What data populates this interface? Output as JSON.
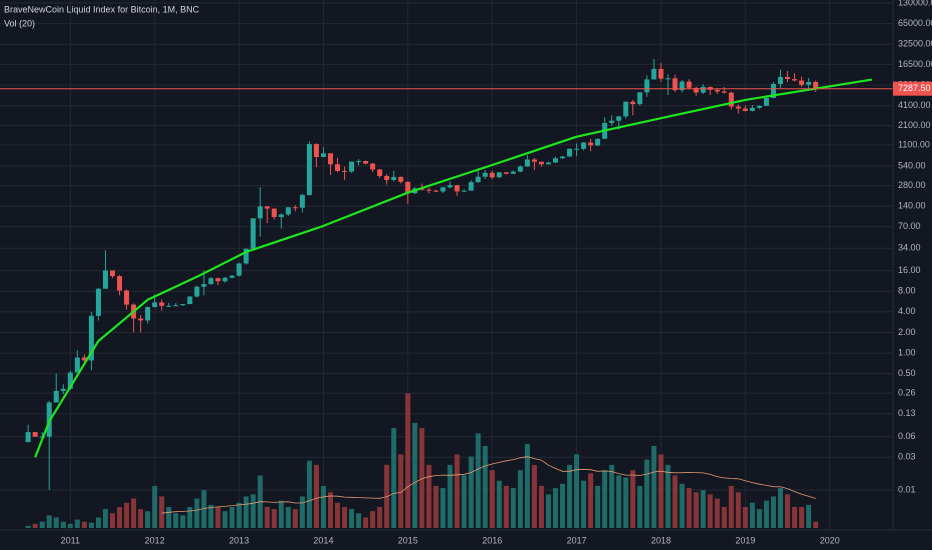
{
  "chart_data": {
    "type": "candlestick",
    "title": "BraveNewCoin Liquid Index for Bitcoin, 1M, BNC",
    "volume_label": "Vol (20)",
    "volume_ma_period": 20,
    "log_scale": true,
    "grid": true,
    "background": "#131722",
    "grid_color": "#242833",
    "up_color": "#26a69a",
    "down_color": "#ef5350",
    "volume_up_color": "#1f6b68",
    "volume_down_color": "#883539",
    "volume_ma_color": "#e39a73",
    "x": [
      "2010-07",
      "2010-08",
      "2010-09",
      "2010-10",
      "2010-11",
      "2010-12",
      "2011-01",
      "2011-02",
      "2011-03",
      "2011-04",
      "2011-05",
      "2011-06",
      "2011-07",
      "2011-08",
      "2011-09",
      "2011-10",
      "2011-11",
      "2011-12",
      "2012-01",
      "2012-02",
      "2012-03",
      "2012-04",
      "2012-05",
      "2012-06",
      "2012-07",
      "2012-08",
      "2012-09",
      "2012-10",
      "2012-11",
      "2012-12",
      "2013-01",
      "2013-02",
      "2013-03",
      "2013-04",
      "2013-05",
      "2013-06",
      "2013-07",
      "2013-08",
      "2013-09",
      "2013-10",
      "2013-11",
      "2013-12",
      "2014-01",
      "2014-02",
      "2014-03",
      "2014-04",
      "2014-05",
      "2014-06",
      "2014-07",
      "2014-08",
      "2014-09",
      "2014-10",
      "2014-11",
      "2014-12",
      "2015-01",
      "2015-02",
      "2015-03",
      "2015-04",
      "2015-05",
      "2015-06",
      "2015-07",
      "2015-08",
      "2015-09",
      "2015-10",
      "2015-11",
      "2015-12",
      "2016-01",
      "2016-02",
      "2016-03",
      "2016-04",
      "2016-05",
      "2016-06",
      "2016-07",
      "2016-08",
      "2016-09",
      "2016-10",
      "2016-11",
      "2016-12",
      "2017-01",
      "2017-02",
      "2017-03",
      "2017-04",
      "2017-05",
      "2017-06",
      "2017-07",
      "2017-08",
      "2017-09",
      "2017-10",
      "2017-11",
      "2017-12",
      "2018-01",
      "2018-02",
      "2018-03",
      "2018-04",
      "2018-05",
      "2018-06",
      "2018-07",
      "2018-08",
      "2018-09",
      "2018-10",
      "2018-11",
      "2018-12",
      "2019-01",
      "2019-02",
      "2019-03",
      "2019-04",
      "2019-05",
      "2019-06",
      "2019-07",
      "2019-08",
      "2019-09",
      "2019-10",
      "2019-11"
    ],
    "open": [
      0.05,
      0.07,
      0.06,
      0.06,
      0.19,
      0.28,
      0.3,
      0.52,
      0.86,
      0.78,
      3.5,
      8.7,
      16.1,
      13.3,
      8.2,
      5.1,
      3.2,
      3,
      4.7,
      5.5,
      4.9,
      4.9,
      5,
      5.2,
      6.7,
      9.3,
      10.2,
      12.4,
      11.2,
      12.6,
      13.5,
      20.4,
      33.4,
      93,
      139,
      129,
      97,
      106,
      135,
      133,
      204,
      1129,
      732,
      829,
      573,
      458,
      448,
      627,
      640,
      586,
      481,
      387,
      338,
      375,
      318,
      217,
      255,
      244,
      236,
      230,
      264,
      284,
      230,
      236,
      314,
      377,
      430,
      369,
      437,
      416,
      448,
      531,
      673,
      624,
      573,
      608,
      701,
      743,
      964,
      965,
      1190,
      1080,
      1350,
      2300,
      2480,
      2870,
      4700,
      4340,
      6450,
      9950,
      14160,
      10220,
      10330,
      6930,
      9250,
      7500,
      6390,
      7730,
      7020,
      6630,
      6370,
      4000,
      3740,
      3450,
      3820,
      4100,
      5330,
      8550,
      10820,
      10080,
      9590,
      8300,
      9150
    ],
    "high": [
      0.09,
      0.07,
      0.07,
      0.2,
      0.5,
      0.35,
      0.55,
      1.1,
      0.95,
      4,
      9,
      31.9,
      16.1,
      13.8,
      8.5,
      5.3,
      3.6,
      4.8,
      7.2,
      6.1,
      5.4,
      5.4,
      5.2,
      6.8,
      9.7,
      16,
      12.9,
      12.7,
      12.9,
      13.9,
      21,
      33.6,
      93,
      266,
      140,
      130,
      110,
      135,
      145,
      214,
      1240,
      1163,
      1020,
      830,
      715,
      530,
      630,
      680,
      650,
      600,
      490,
      414,
      460,
      380,
      320,
      265,
      300,
      261,
      245,
      267,
      320,
      284,
      245,
      334,
      503,
      467,
      463,
      440,
      440,
      469,
      554,
      780,
      705,
      626,
      630,
      740,
      755,
      980,
      1155,
      1210,
      1350,
      1360,
      2790,
      3000,
      2920,
      4750,
      5000,
      6470,
      11430,
      19700,
      17200,
      11800,
      11700,
      9760,
      10000,
      7760,
      8470,
      7760,
      7400,
      7700,
      6600,
      4300,
      4100,
      4200,
      4160,
      5620,
      9090,
      13850,
      13200,
      12300,
      10940,
      10480,
      9520
    ],
    "low": [
      0.05,
      0.06,
      0.06,
      0.01,
      0.19,
      0.25,
      0.29,
      0.52,
      0.7,
      0.56,
      3,
      8.7,
      12.5,
      7,
      4.3,
      2,
      2,
      2.7,
      4.6,
      4.2,
      4.7,
      4.8,
      4.9,
      5.2,
      6.5,
      7,
      9.9,
      9.8,
      10.6,
      12.3,
      13.1,
      19.6,
      33.2,
      50,
      79,
      89,
      66,
      101,
      118,
      113,
      200,
      522,
      730,
      400,
      441,
      340,
      430,
      550,
      570,
      440,
      360,
      290,
      320,
      300,
      152,
      210,
      235,
      215,
      225,
      218,
      254,
      198,
      226,
      236,
      305,
      350,
      350,
      365,
      410,
      414,
      440,
      527,
      475,
      530,
      570,
      605,
      690,
      740,
      750,
      915,
      890,
      1060,
      1340,
      2100,
      1840,
      2670,
      2970,
      4110,
      5550,
      9900,
      9200,
      5900,
      6500,
      6430,
      7030,
      5780,
      6100,
      5880,
      6100,
      6200,
      3600,
      3150,
      3380,
      3400,
      3700,
      4050,
      5320,
      7500,
      9080,
      9330,
      7730,
      7340,
      6530
    ],
    "close": [
      0.07,
      0.06,
      0.06,
      0.19,
      0.28,
      0.3,
      0.52,
      0.86,
      0.78,
      3.5,
      8.7,
      16.1,
      13.3,
      8.2,
      5.1,
      3.2,
      3,
      4.7,
      5.5,
      4.9,
      4.9,
      5,
      5.2,
      6.7,
      9.3,
      10.2,
      12.4,
      11.2,
      12.6,
      13.5,
      20.4,
      33.4,
      93,
      139,
      129,
      97,
      106,
      135,
      133,
      204,
      1129,
      732,
      829,
      573,
      458,
      448,
      627,
      640,
      586,
      481,
      387,
      338,
      375,
      318,
      217,
      255,
      244,
      236,
      230,
      264,
      284,
      230,
      236,
      314,
      377,
      430,
      369,
      437,
      416,
      448,
      531,
      673,
      624,
      573,
      608,
      701,
      743,
      964,
      965,
      1190,
      1080,
      1350,
      2300,
      2480,
      2870,
      4700,
      4340,
      6450,
      9950,
      14160,
      10220,
      10330,
      6930,
      9250,
      7500,
      6390,
      7730,
      7020,
      6630,
      6370,
      4000,
      3740,
      3450,
      3820,
      4100,
      5330,
      8550,
      10820,
      10080,
      9590,
      8300,
      9150,
      7287.5
    ],
    "volume": [
      2,
      4,
      6,
      12,
      10,
      6,
      4,
      8,
      6,
      5,
      10,
      18,
      14,
      20,
      24,
      28,
      18,
      16,
      40,
      30,
      20,
      14,
      12,
      20,
      28,
      36,
      22,
      20,
      16,
      20,
      24,
      30,
      32,
      50,
      20,
      18,
      26,
      20,
      18,
      30,
      64,
      60,
      40,
      34,
      24,
      20,
      18,
      14,
      10,
      16,
      20,
      60,
      95,
      70,
      128,
      100,
      95,
      60,
      40,
      38,
      60,
      70,
      50,
      68,
      90,
      78,
      55,
      45,
      40,
      38,
      55,
      80,
      60,
      40,
      32,
      38,
      42,
      60,
      70,
      45,
      52,
      40,
      55,
      60,
      50,
      48,
      55,
      40,
      65,
      78,
      70,
      60,
      50,
      42,
      38,
      34,
      36,
      32,
      28,
      20,
      40,
      34,
      20,
      24,
      18,
      26,
      30,
      38,
      32,
      20,
      20,
      22,
      6
    ],
    "volume_ylim": [
      0,
      135
    ],
    "trendline": {
      "color": "#1ee61e",
      "x": [
        "2010-08",
        "2010-10",
        "2011-05",
        "2011-12",
        "2012-07",
        "2013-02",
        "2014-01",
        "2015-01",
        "2016-01",
        "2017-01",
        "2018-01",
        "2019-01",
        "2020-07"
      ],
      "values": [
        0.03,
        0.1,
        1.5,
        6,
        13,
        30,
        72,
        220,
        560,
        1450,
        2700,
        5000,
        9900
      ]
    },
    "price_line": {
      "value": 7287.5,
      "label": "7287.50",
      "color": "#ef5350"
    },
    "xlim": [
      "2010-03",
      "2020-10"
    ],
    "xticks": [
      2011,
      2012,
      2013,
      2014,
      2015,
      2016,
      2017,
      2018,
      2019,
      2020
    ],
    "ylim": [
      0.0026,
      144000
    ],
    "yticks": [
      {
        "value": 130000,
        "label": "130000.00"
      },
      {
        "value": 65000,
        "label": "65000.00"
      },
      {
        "value": 32500,
        "label": "32500.00"
      },
      {
        "value": 16500,
        "label": "16500.00"
      },
      {
        "value": 8200,
        "label": "8200.00"
      },
      {
        "value": 4100,
        "label": "4100.00"
      },
      {
        "value": 2100,
        "label": "2100.00"
      },
      {
        "value": 1100,
        "label": "1100.00"
      },
      {
        "value": 540,
        "label": "540.00"
      },
      {
        "value": 280,
        "label": "280.00"
      },
      {
        "value": 140,
        "label": "140.00"
      },
      {
        "value": 70,
        "label": "70.00"
      },
      {
        "value": 34,
        "label": "34.00"
      },
      {
        "value": 16,
        "label": "16.00"
      },
      {
        "value": 8,
        "label": "8.00"
      },
      {
        "value": 4,
        "label": "4.00"
      },
      {
        "value": 2,
        "label": "2.00"
      },
      {
        "value": 1,
        "label": "1.00"
      },
      {
        "value": 0.5,
        "label": "0.50"
      },
      {
        "value": 0.26,
        "label": "0.26"
      },
      {
        "value": 0.13,
        "label": "0.13"
      },
      {
        "value": 0.06,
        "label": "0.06"
      },
      {
        "value": 0.03,
        "label": "0.03"
      },
      {
        "value": 0.01,
        "label": "0.01"
      }
    ]
  }
}
